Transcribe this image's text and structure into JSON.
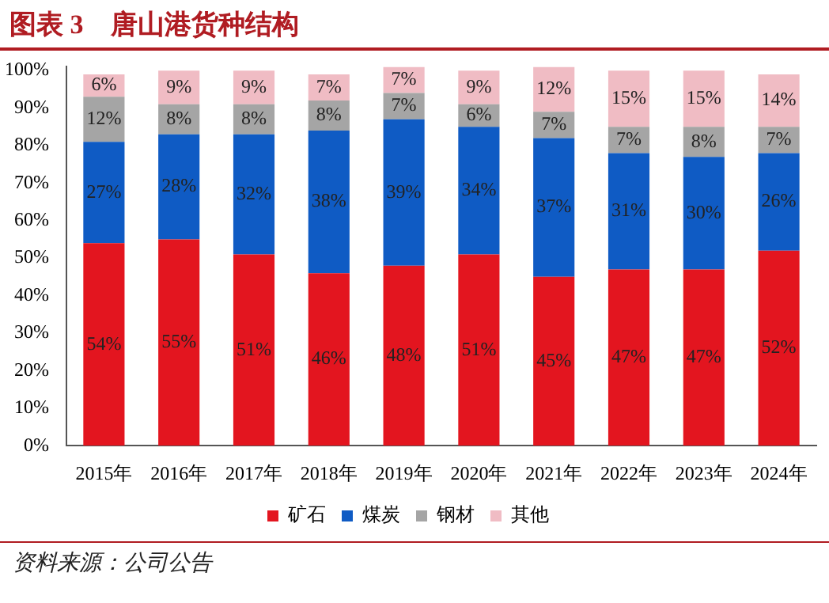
{
  "chart_data": {
    "type": "bar",
    "title": "图表 3　唐山港货种结构",
    "stacked": true,
    "legend": "bottom",
    "grid": false,
    "categories": [
      "2015年",
      "2016年",
      "2017年",
      "2018年",
      "2019年",
      "2020年",
      "2021年",
      "2022年",
      "2023年",
      "2024年"
    ],
    "series": [
      {
        "name": "矿石",
        "color": "#e3151f",
        "values": [
          54,
          55,
          51,
          46,
          48,
          51,
          45,
          47,
          47,
          52
        ],
        "value_labels": [
          "54%",
          "55%",
          "51%",
          "46%",
          "48%",
          "51%",
          "45%",
          "47%",
          "47%",
          "52%"
        ]
      },
      {
        "name": "煤炭",
        "color": "#0f5bc4",
        "values": [
          27,
          28,
          32,
          38,
          39,
          34,
          37,
          31,
          30,
          26
        ],
        "value_labels": [
          "27%",
          "28%",
          "32%",
          "38%",
          "39%",
          "34%",
          "37%",
          "31%",
          "30%",
          "26%"
        ]
      },
      {
        "name": "钢材",
        "color": "#a5a5a5",
        "values": [
          12,
          8,
          8,
          8,
          7,
          6,
          7,
          7,
          8,
          7
        ],
        "value_labels": [
          "12%",
          "8%",
          "8%",
          "8%",
          "7%",
          "6%",
          "7%",
          "7%",
          "8%",
          "7%"
        ]
      },
      {
        "name": "其他",
        "color": "#f0bcc4",
        "values": [
          6,
          9,
          9,
          7,
          7,
          9,
          12,
          15,
          15,
          14
        ],
        "value_labels": [
          "6%",
          "9%",
          "9%",
          "7%",
          "7%",
          "9%",
          "12%",
          "15%",
          "15%",
          "14%"
        ]
      }
    ],
    "ylim": [
      0,
      101
    ],
    "yticks": [
      {
        "value": 0,
        "label": "0%"
      },
      {
        "value": 10,
        "label": "10%"
      },
      {
        "value": 20,
        "label": "20%"
      },
      {
        "value": 30,
        "label": "30%"
      },
      {
        "value": 40,
        "label": "40%"
      },
      {
        "value": 50,
        "label": "50%"
      },
      {
        "value": 60,
        "label": "60%"
      },
      {
        "value": 70,
        "label": "70%"
      },
      {
        "value": 80,
        "label": "80%"
      },
      {
        "value": 90,
        "label": "90%"
      },
      {
        "value": 100,
        "label": "100%"
      }
    ],
    "annotations": [
      "资料来源：公司公告"
    ]
  }
}
